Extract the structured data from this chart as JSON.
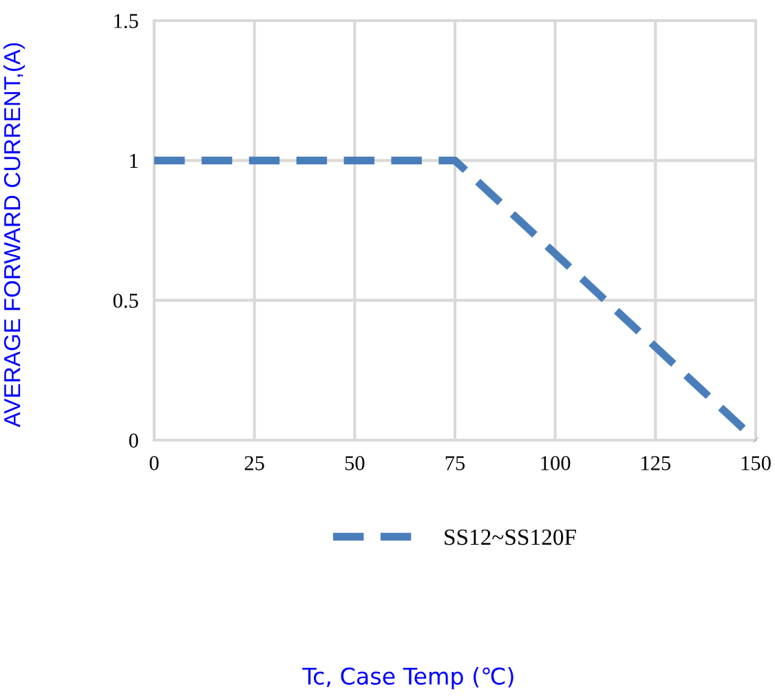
{
  "chart_data": {
    "type": "line",
    "annotations": [
      "Tc, Case Temp (℃)"
    ],
    "ylabel": "AVERAGE FORWARD CURRENT,(A)",
    "series": [
      {
        "name": "SS12~SS120F",
        "color": "#4a7ebb",
        "x": [
          0,
          75,
          150
        ],
        "values": [
          1,
          1,
          0
        ]
      }
    ],
    "xlim": [
      0,
      150
    ],
    "xticks": [
      0,
      25,
      50,
      75,
      100,
      125,
      150
    ],
    "ylim": [
      0,
      1.5
    ],
    "yticks": [
      0,
      0.5,
      1,
      1.5
    ],
    "grid": true,
    "legend": "bottom",
    "line_style": "dashed",
    "marker": "none"
  }
}
